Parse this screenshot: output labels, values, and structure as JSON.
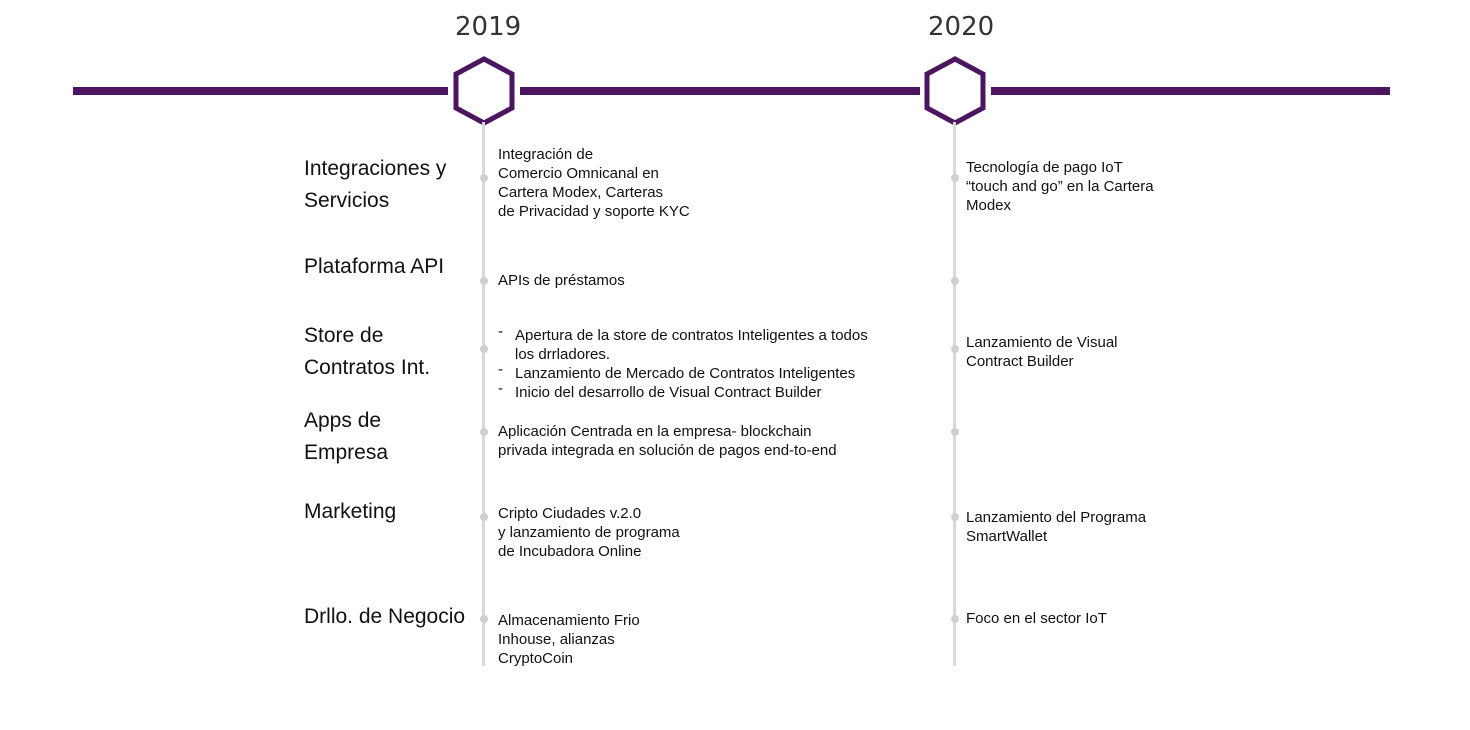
{
  "years": [
    "2019",
    "2020"
  ],
  "colors": {
    "accent": "#4b1560",
    "timeline": "#d9d9d9",
    "marker": "#cfcfcf"
  },
  "rows": [
    {
      "category": "Integraciones y\nServicios",
      "y2019": "Integración de\nComercio Omnicanal en\nCartera Modex, Carteras\nde Privacidad y soporte KYC",
      "y2020": "Tecnología de pago  IoT\n“touch and go” en la Cartera\nModex"
    },
    {
      "category": "Plataforma API",
      "y2019": "APIs de préstamos",
      "y2020": ""
    },
    {
      "category": "Store de\nContratos Int.",
      "y2019_bullets": [
        "Apertura de la store de contratos Inteligentes a todos los drrladores.",
        "Lanzamiento de Mercado de Contratos Inteligentes",
        "Inicio del desarrollo de Visual Contract Builder"
      ],
      "y2020": "Lanzamiento de Visual\nContract Builder"
    },
    {
      "category": "Apps de\nEmpresa",
      "y2019": "Aplicación Centrada en la empresa- blockchain\nprivada integrada en solución de pagos end-to-end",
      "y2020": ""
    },
    {
      "category": "Marketing",
      "y2019": "Cripto Ciudades v.2.0\ny lanzamiento de programa\nde Incubadora Online",
      "y2020": "Lanzamiento del Programa\nSmartWallet"
    },
    {
      "category": "Drllo. de Negocio",
      "y2019": "Almacenamiento Frio\nInhouse, alianzas\nCryptoCoin",
      "y2020": "Foco en el sector IoT"
    }
  ]
}
